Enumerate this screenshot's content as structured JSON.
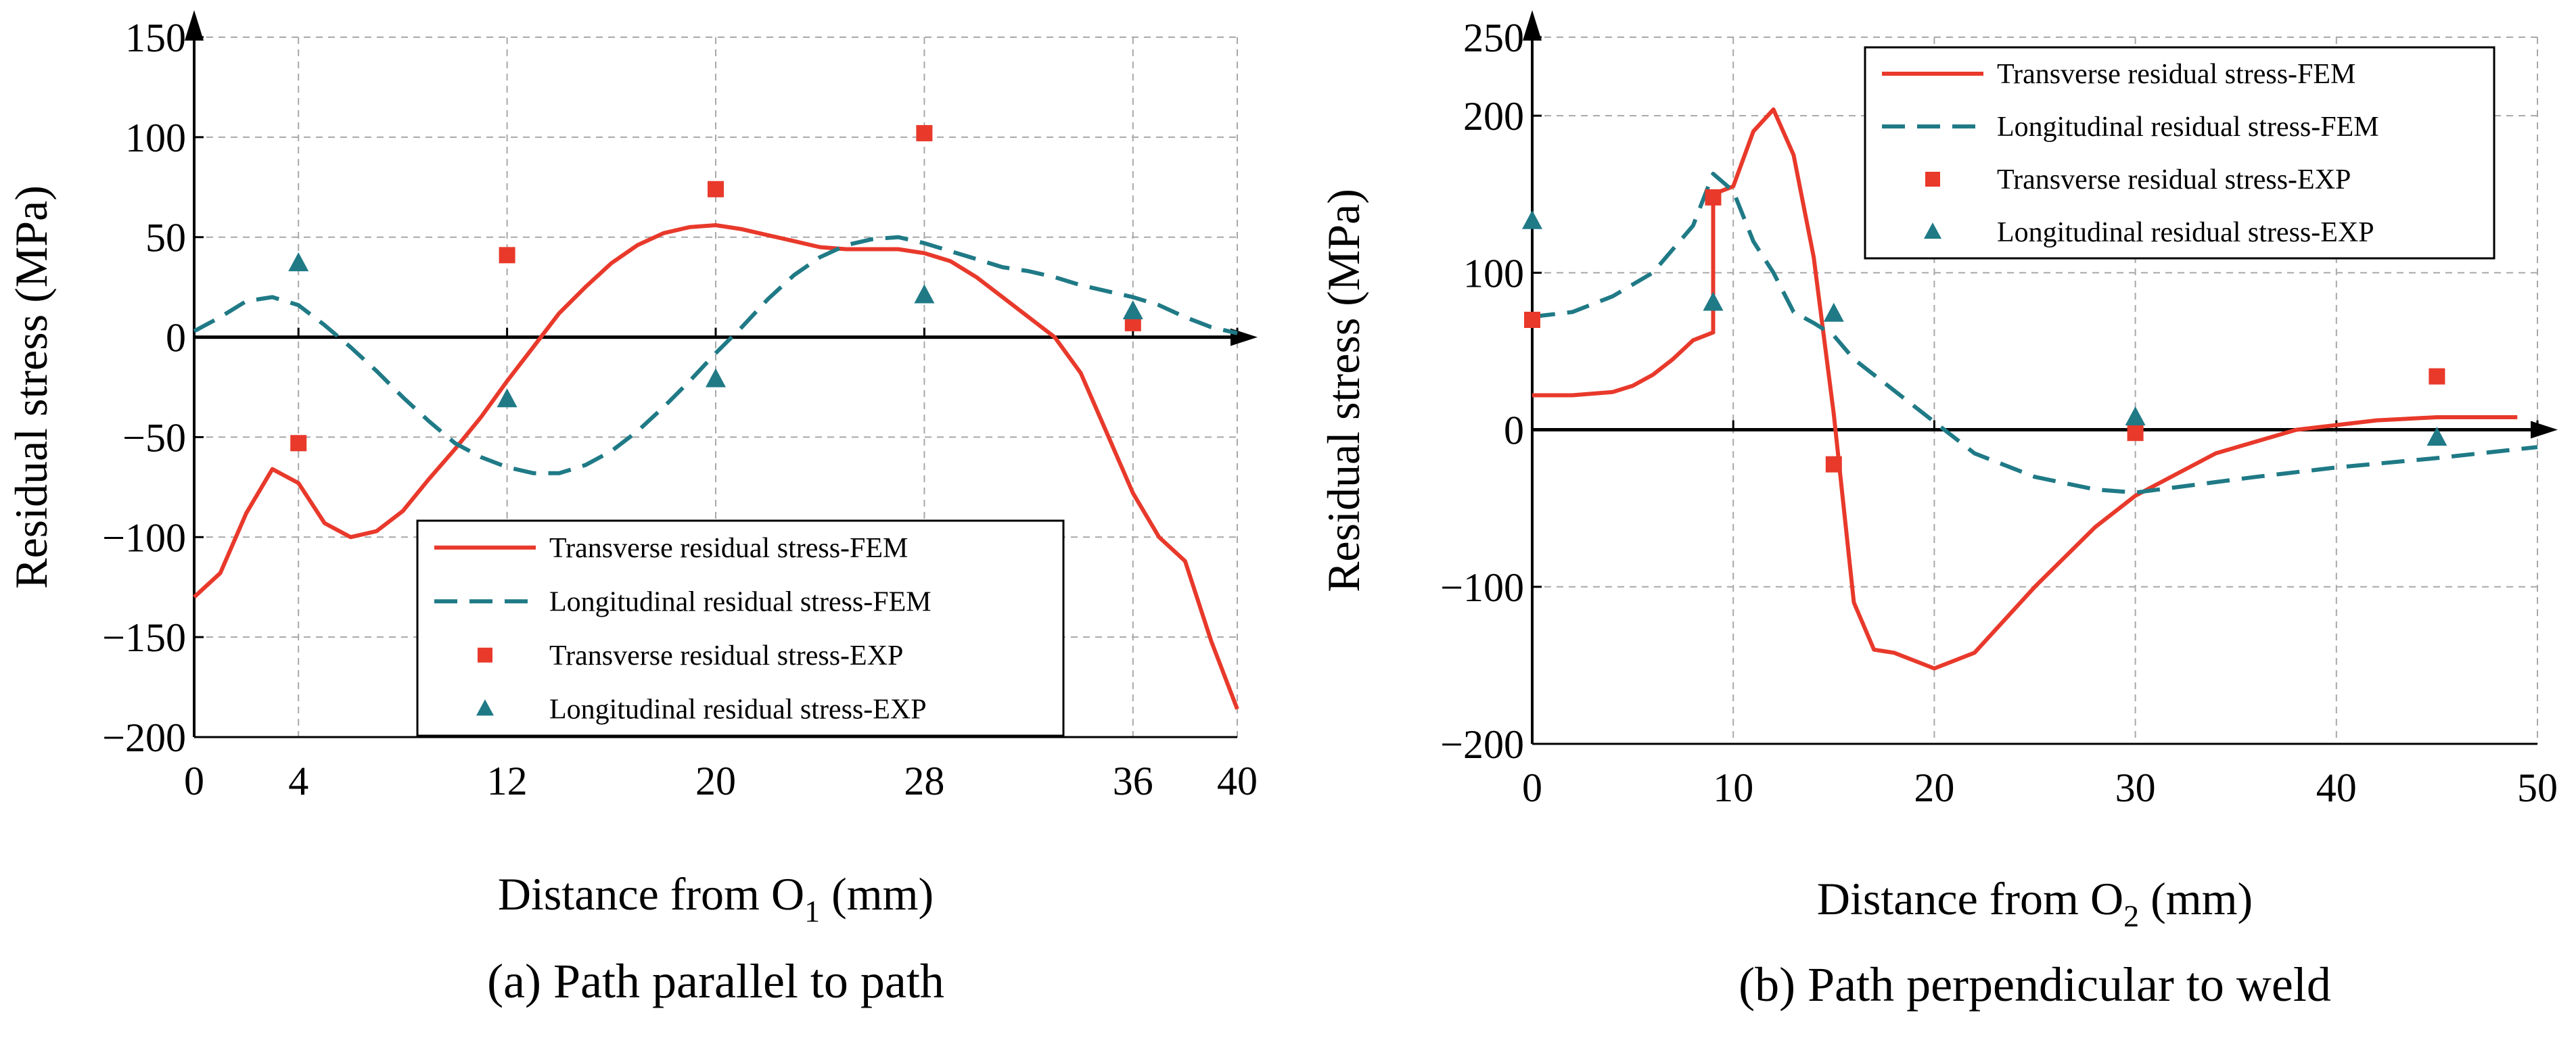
{
  "chart_data": [
    {
      "type": "line",
      "panel": "a",
      "caption": "(a) Path parallel to path",
      "xlabel": {
        "before": "Distance from O",
        "sub": "1",
        "after": " (mm)"
      },
      "ylabel": "Residual stress (MPa)",
      "xlim": [
        0,
        40
      ],
      "ylim": [
        -200,
        150
      ],
      "xticks": [
        0,
        4,
        12,
        20,
        28,
        36,
        40
      ],
      "yticks": [
        150,
        100,
        50,
        0,
        -50,
        -100,
        -150,
        -200
      ],
      "xtick_labels": [
        "0",
        "4",
        "12",
        "20",
        "28",
        "36",
        "40"
      ],
      "ytick_labels": [
        "150",
        "100",
        "50",
        "0",
        "−50",
        "−100",
        "−150",
        "−200"
      ],
      "grid": true,
      "legend_position": "bottom-right",
      "series": [
        {
          "name": "Transverse residual stress-FEM",
          "style": "solid-line",
          "color": "#e8392b",
          "x": [
            0,
            1,
            2,
            3,
            4,
            5,
            6,
            7,
            8,
            9,
            10,
            11,
            12,
            13,
            14,
            15,
            16,
            17,
            18,
            19,
            20,
            21,
            22,
            23,
            24,
            25,
            26,
            27,
            28,
            29,
            30,
            31,
            32,
            33,
            34,
            35,
            36,
            37,
            38,
            39,
            40
          ],
          "y": [
            -130,
            -118,
            -88,
            -66,
            -73,
            -93,
            -100,
            -97,
            -87,
            -71,
            -56,
            -40,
            -22,
            -5,
            12,
            25,
            37,
            46,
            52,
            55,
            56,
            54,
            51,
            48,
            45,
            44,
            44,
            44,
            42,
            38,
            30,
            20,
            10,
            0,
            -18,
            -48,
            -78,
            -100,
            -112,
            -152,
            -186
          ]
        },
        {
          "name": "Longitudinal residual stress-FEM",
          "style": "dashed-line",
          "color": "#1f7a86",
          "x": [
            0,
            1,
            2,
            3,
            4,
            5,
            6,
            7,
            8,
            9,
            10,
            11,
            12,
            13,
            14,
            15,
            16,
            17,
            18,
            19,
            20,
            21,
            22,
            23,
            24,
            25,
            26,
            27,
            28,
            29,
            30,
            31,
            32,
            33,
            34,
            35,
            36,
            37,
            38,
            39,
            40
          ],
          "y": [
            3,
            10,
            18,
            20,
            16,
            6,
            -5,
            -17,
            -30,
            -42,
            -53,
            -60,
            -65,
            -68,
            -68,
            -64,
            -57,
            -47,
            -35,
            -22,
            -8,
            5,
            19,
            31,
            40,
            46,
            49,
            50,
            47,
            43,
            39,
            35,
            33,
            30,
            26,
            23,
            20,
            16,
            10,
            5,
            2
          ]
        },
        {
          "name": "Transverse residual stress-EXP",
          "style": "square-marker",
          "color": "#e8392b",
          "x": [
            4,
            12,
            20,
            28,
            36
          ],
          "y": [
            -53,
            41,
            74,
            102,
            7
          ]
        },
        {
          "name": "Longitudinal residual stress-EXP",
          "style": "triangle-marker",
          "color": "#1f7a86",
          "x": [
            4,
            12,
            20,
            28,
            36
          ],
          "y": [
            37,
            -31,
            -21,
            21,
            13
          ]
        }
      ]
    },
    {
      "type": "line",
      "panel": "b",
      "caption": "(b) Path perpendicular to weld",
      "xlabel": {
        "before": "Distance from O",
        "sub": "2",
        "after": " (mm)"
      },
      "ylabel": "Residual stress (MPa)",
      "xlim": [
        0,
        50
      ],
      "ylim": [
        -200,
        250
      ],
      "xticks": [
        0,
        10,
        20,
        30,
        40,
        50
      ],
      "yticks": [
        250,
        200,
        100,
        0,
        -100,
        -200
      ],
      "xtick_labels": [
        "0",
        "10",
        "20",
        "30",
        "40",
        "50"
      ],
      "ytick_labels": [
        "250",
        "200",
        "100",
        "0",
        "−100",
        "−200"
      ],
      "grid": true,
      "legend_position": "top-right",
      "series": [
        {
          "name": "Transverse residual stress-FEM",
          "style": "solid-line",
          "color": "#e8392b",
          "x": [
            0,
            2,
            4,
            5,
            6,
            7,
            8,
            9,
            9,
            10,
            11,
            12,
            13,
            14,
            15,
            16,
            17,
            18,
            20,
            22,
            25,
            28,
            30,
            34,
            38,
            40,
            42,
            45,
            49
          ],
          "y": [
            22,
            22,
            24,
            28,
            35,
            45,
            57,
            62,
            150,
            155,
            190,
            204,
            175,
            110,
            10,
            -110,
            -140,
            -142,
            -152,
            -142,
            -100,
            -62,
            -42,
            -15,
            0,
            3,
            6,
            8,
            8
          ]
        },
        {
          "name": "Longitudinal residual stress-FEM",
          "style": "dashed-line",
          "color": "#1f7a86",
          "x": [
            0,
            2,
            4,
            6,
            8,
            9,
            10,
            11,
            12,
            13,
            14,
            15,
            16,
            18,
            20,
            22,
            25,
            28,
            30,
            33,
            36,
            40,
            45,
            50
          ],
          "y": [
            72,
            75,
            85,
            100,
            130,
            163,
            152,
            120,
            100,
            75,
            68,
            60,
            45,
            25,
            5,
            -15,
            -30,
            -38,
            -40,
            -35,
            -30,
            -24,
            -18,
            -11
          ]
        },
        {
          "name": "Transverse residual stress-EXP",
          "style": "square-marker",
          "color": "#e8392b",
          "x": [
            0,
            9,
            15,
            30,
            45
          ],
          "y": [
            70,
            148,
            -22,
            -2,
            34
          ]
        },
        {
          "name": "Longitudinal residual stress-EXP",
          "style": "triangle-marker",
          "color": "#1f7a86",
          "x": [
            0,
            9,
            15,
            30,
            45
          ],
          "y": [
            133,
            81,
            74,
            8,
            -5
          ]
        }
      ]
    }
  ]
}
